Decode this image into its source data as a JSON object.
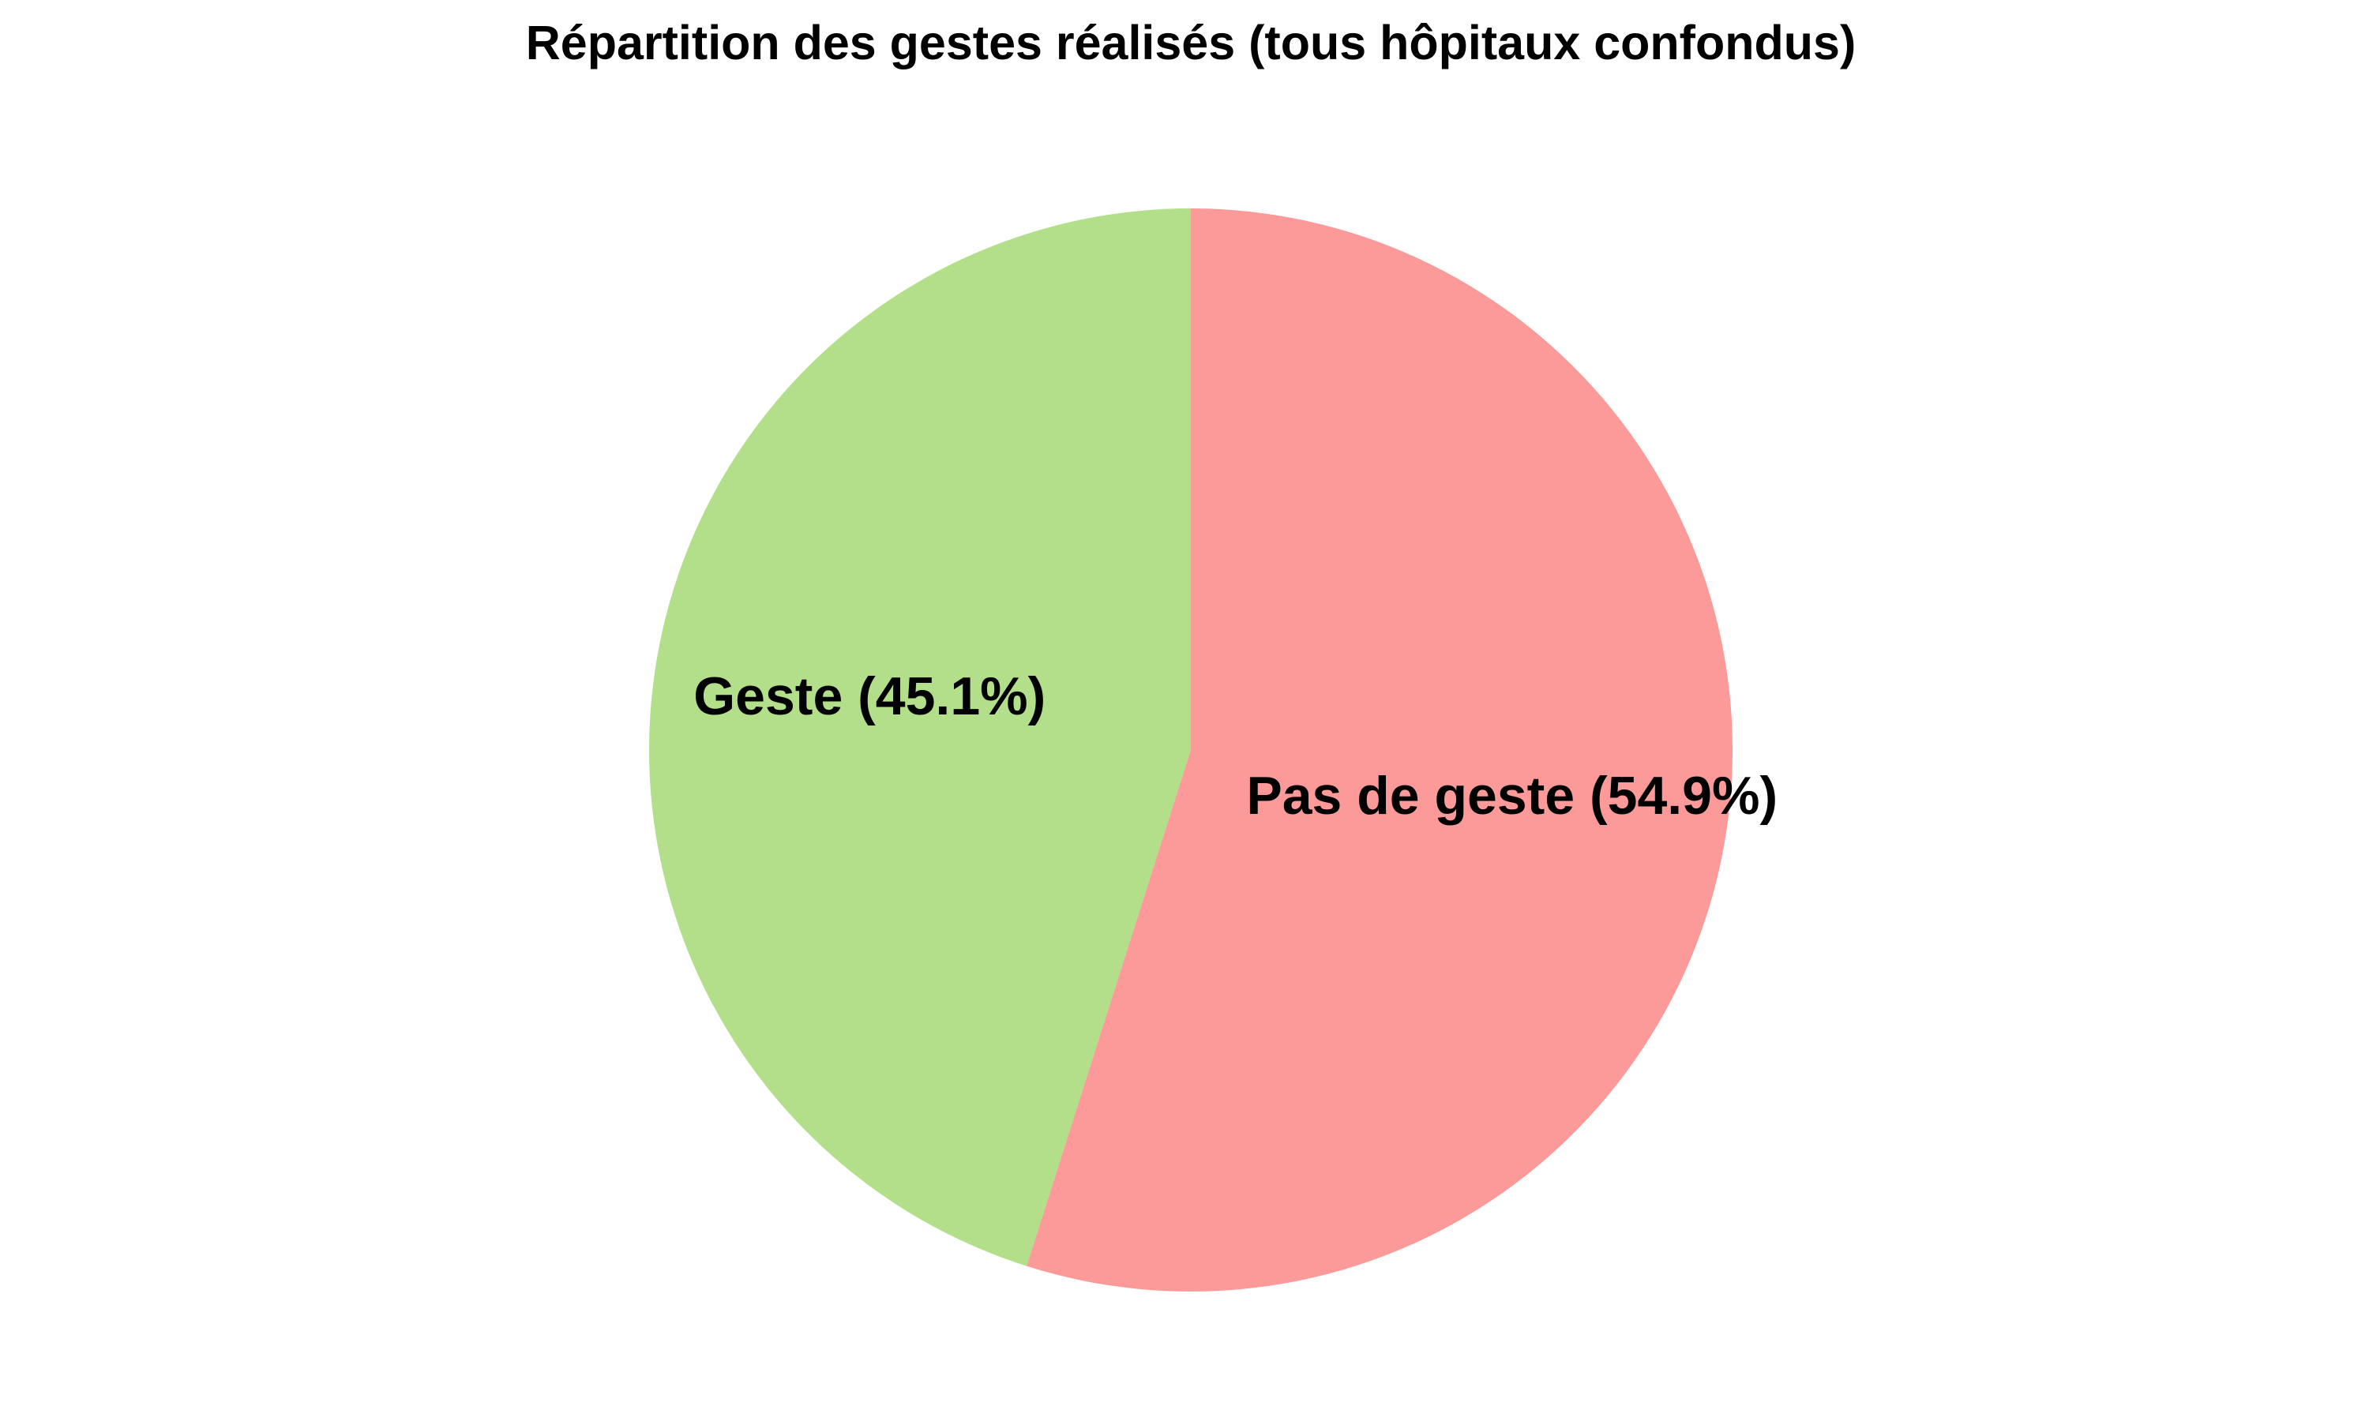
{
  "chart_data": {
    "type": "pie",
    "title": "Répartition des gestes réalisés (tous hôpitaux confondus)",
    "start_angle_deg": 90,
    "direction": "counterclockwise",
    "slices": [
      {
        "label": "Geste",
        "percent": 45.1,
        "value_label": "Geste (45.1%)",
        "color": "#b3df8a"
      },
      {
        "label": "Pas de geste",
        "percent": 54.9,
        "value_label": "Pas de geste (54.9%)",
        "color": "#fc9a9a"
      }
    ]
  }
}
